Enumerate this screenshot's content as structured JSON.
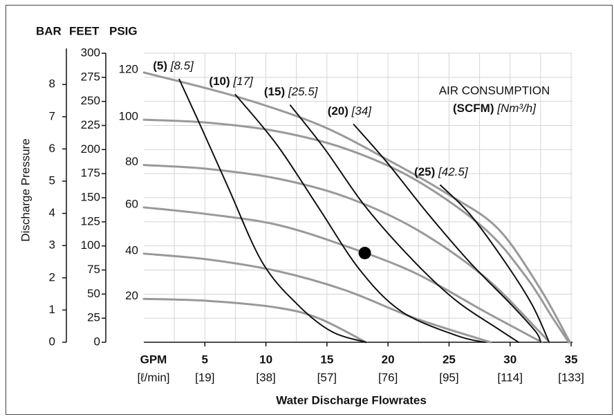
{
  "chart_data": {
    "type": "performance_curve",
    "axis_headers": [
      "BAR",
      "FEET",
      "PSIG"
    ],
    "y_axis_label": "Discharge Pressure",
    "x_axis_label": "Water Discharge Flowrates",
    "x_unit_label": "GPM",
    "x_unit_sublabel": "[ℓ/min]",
    "annotation": {
      "title": "AIR CONSUMPTION",
      "unit": "(SCFM)",
      "unit_metric": "[Nm³/h]"
    },
    "xlim": [
      0,
      35
    ],
    "xticks": [
      5,
      10,
      15,
      20,
      25,
      30,
      35
    ],
    "xtick_sublabels": [
      "[19]",
      "[38]",
      "[57]",
      "[76]",
      "[95]",
      "[114]",
      "[133]"
    ],
    "xminorticks": [
      2.5,
      7.5,
      12.5,
      17.5,
      22.5,
      27.5,
      32.5
    ],
    "ylim": [
      0,
      300
    ],
    "yticks": [
      0,
      25,
      50,
      75,
      100,
      125,
      150,
      175,
      200,
      225,
      250,
      275,
      300
    ],
    "y2lim": [
      0,
      8.97
    ],
    "y2ticks": [
      0,
      1,
      2,
      3,
      4,
      5,
      6,
      7,
      8
    ],
    "grid": true,
    "pressure_curves": [
      {
        "name": "120",
        "color": "#999999",
        "x": [
          0,
          7.6,
          14.3,
          19.9,
          25,
          29,
          32.4,
          34.9
        ],
        "values": [
          280,
          255,
          226,
          190,
          153,
          118,
          57,
          0
        ]
      },
      {
        "name": "100",
        "color": "#999999",
        "x": [
          0,
          5.2,
          10.9,
          16.5,
          22.2,
          27.9,
          31.3,
          33.5,
          34.8
        ],
        "values": [
          231,
          228,
          219,
          201,
          169,
          118,
          68,
          25,
          0
        ]
      },
      {
        "name": "80",
        "color": "#999999",
        "x": [
          0,
          5.2,
          10.9,
          16.5,
          22.2,
          27.9,
          32.4,
          33.2
        ],
        "values": [
          184,
          180,
          170,
          151,
          118,
          68,
          11,
          0
        ]
      },
      {
        "name": "60",
        "color": "#999999",
        "x": [
          0,
          5.2,
          10.9,
          16.5,
          22.2,
          27.9,
          32.6
        ],
        "values": [
          140,
          133,
          122,
          100,
          72,
          32,
          0
        ]
      },
      {
        "name": "40",
        "color": "#999999",
        "x": [
          0,
          5.2,
          10.9,
          16.5,
          22.2,
          28.4
        ],
        "values": [
          92,
          86,
          74,
          54,
          25,
          0
        ]
      },
      {
        "name": "20",
        "color": "#999999",
        "x": [
          0,
          5.2,
          10.9,
          14.3,
          18.2
        ],
        "values": [
          45,
          43,
          36,
          25,
          0
        ]
      }
    ],
    "air_curves": [
      {
        "name": "(5)",
        "name_metric": "[8.5]",
        "color": "#111111",
        "x": [
          2.9,
          4.6,
          6.9,
          9.7,
          12.6,
          15.4,
          18.2
        ],
        "values": [
          273,
          226,
          161,
          83,
          39,
          11,
          0
        ]
      },
      {
        "name": "(10)",
        "name_metric": "[17]",
        "color": "#111111",
        "x": [
          7.5,
          10.9,
          14.3,
          17.7,
          21.1,
          25.6,
          27.9
        ],
        "values": [
          257,
          205,
          140,
          75,
          32,
          7,
          0
        ]
      },
      {
        "name": "(15)",
        "name_metric": "[25.5]",
        "color": "#111111",
        "x": [
          12.0,
          14.8,
          18.2,
          22.2,
          25.6,
          29,
          30.7
        ],
        "values": [
          246,
          201,
          140,
          83,
          43,
          14,
          0
        ]
      },
      {
        "name": "(20)",
        "name_metric": "[34]",
        "color": "#111111",
        "x": [
          17.2,
          19.9,
          23.3,
          26.7,
          30.1,
          32.1,
          32.5
        ],
        "values": [
          226,
          187,
          133,
          83,
          39,
          11,
          0
        ]
      },
      {
        "name": "(25)",
        "name_metric": "[42.5]",
        "color": "#111111",
        "x": [
          24.3,
          26.7,
          29.6,
          31.8,
          33.2
        ],
        "values": [
          163,
          133,
          83,
          39,
          0
        ]
      }
    ],
    "operating_point": {
      "x": 18.1,
      "value": 92.6,
      "color": "#000000"
    }
  }
}
